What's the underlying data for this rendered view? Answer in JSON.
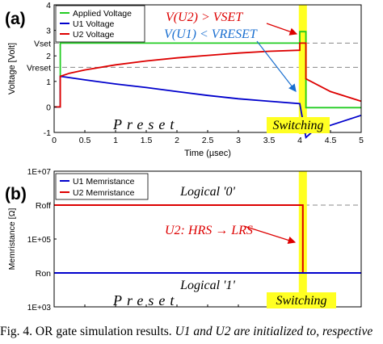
{
  "chart_data": [
    {
      "panel_label": "(a)",
      "type": "line",
      "xlabel": "Time (µsec)",
      "ylabel": "Voltage [Volt]",
      "xlim": [
        0,
        5
      ],
      "ylim": [
        -1,
        4
      ],
      "xticks": [
        "0",
        "0.5",
        "1",
        "1.5",
        "2",
        "2.5",
        "3",
        "3.5",
        "4",
        "4.5",
        "5"
      ],
      "yticks": [
        "-1",
        "0",
        "1",
        "2",
        "3",
        "4"
      ],
      "ref_lines": [
        {
          "label": "Vset",
          "y": 2.5
        },
        {
          "label": "Vreset",
          "y": 1.55
        }
      ],
      "switching_x": 4.05,
      "series": [
        {
          "name": "Applied Voltage",
          "color": "#22cc22",
          "points": [
            [
              0,
              0
            ],
            [
              0.1,
              0
            ],
            [
              0.1,
              2.5
            ],
            [
              4.0,
              2.5
            ],
            [
              4.0,
              2.95
            ],
            [
              4.1,
              2.95
            ],
            [
              4.1,
              -0.03
            ],
            [
              5,
              -0.03
            ]
          ]
        },
        {
          "name": "U1 Voltage",
          "color": "#0000cc",
          "points": [
            [
              0,
              0
            ],
            [
              0.1,
              0
            ],
            [
              0.1,
              1.2
            ],
            [
              0.25,
              1.15
            ],
            [
              0.5,
              1.06
            ],
            [
              1.0,
              0.9
            ],
            [
              1.5,
              0.76
            ],
            [
              2.0,
              0.6
            ],
            [
              2.5,
              0.45
            ],
            [
              3.0,
              0.32
            ],
            [
              3.5,
              0.22
            ],
            [
              4.0,
              0.13
            ],
            [
              4.1,
              -1.2
            ],
            [
              4.2,
              -0.98
            ],
            [
              4.5,
              -0.72
            ],
            [
              5,
              -0.33
            ]
          ]
        },
        {
          "name": "U2 Voltage",
          "color": "#dd0000",
          "points": [
            [
              0,
              0
            ],
            [
              0.1,
              0
            ],
            [
              0.1,
              1.2
            ],
            [
              0.25,
              1.32
            ],
            [
              0.5,
              1.45
            ],
            [
              1.0,
              1.65
            ],
            [
              1.5,
              1.8
            ],
            [
              2.0,
              1.92
            ],
            [
              2.5,
              2.02
            ],
            [
              3.0,
              2.11
            ],
            [
              3.5,
              2.18
            ],
            [
              4.0,
              2.22
            ],
            [
              4.0,
              2.5
            ],
            [
              4.1,
              2.5
            ],
            [
              4.1,
              1.1
            ],
            [
              4.5,
              0.6
            ],
            [
              5,
              0.22
            ]
          ]
        }
      ],
      "annotations": {
        "u2_condition": "V(U2) > VSET",
        "u1_condition": "V(U1) < VRESET",
        "phase_preset": "Preset",
        "phase_switching": "Switching"
      }
    },
    {
      "panel_label": "(b)",
      "type": "line",
      "xlabel": "",
      "ylabel": "Memristance [Ω]",
      "xlim": [
        0,
        5
      ],
      "ylog": true,
      "ylim": [
        1000,
        10000000
      ],
      "yticks": [
        "1E+03",
        "1E+05",
        "1E+07"
      ],
      "ref_lines": [
        {
          "label": "Roff",
          "y": 1000000
        },
        {
          "label": "Ron",
          "y": 10000
        }
      ],
      "switching_x": 4.05,
      "series": [
        {
          "name": "U1 Memristance",
          "color": "#0000cc",
          "points": [
            [
              0,
              10000
            ],
            [
              5,
              10000
            ]
          ]
        },
        {
          "name": "U2 Memristance",
          "color": "#dd0000",
          "points": [
            [
              0,
              1000000
            ],
            [
              4.05,
              1000000
            ],
            [
              4.05,
              10000
            ],
            [
              5,
              10000
            ]
          ]
        }
      ],
      "annotations": {
        "logical_zero": "Logical '0'",
        "logical_one": "Logical '1'",
        "u2_transition": "U2: HRS → LRS",
        "phase_preset": "Preset",
        "phase_switching": "Switching"
      }
    }
  ],
  "caption": {
    "lead": "Fig. 4.   OR gate simulation results.",
    "rest": "U1 and U2 are initialized to, respective"
  }
}
